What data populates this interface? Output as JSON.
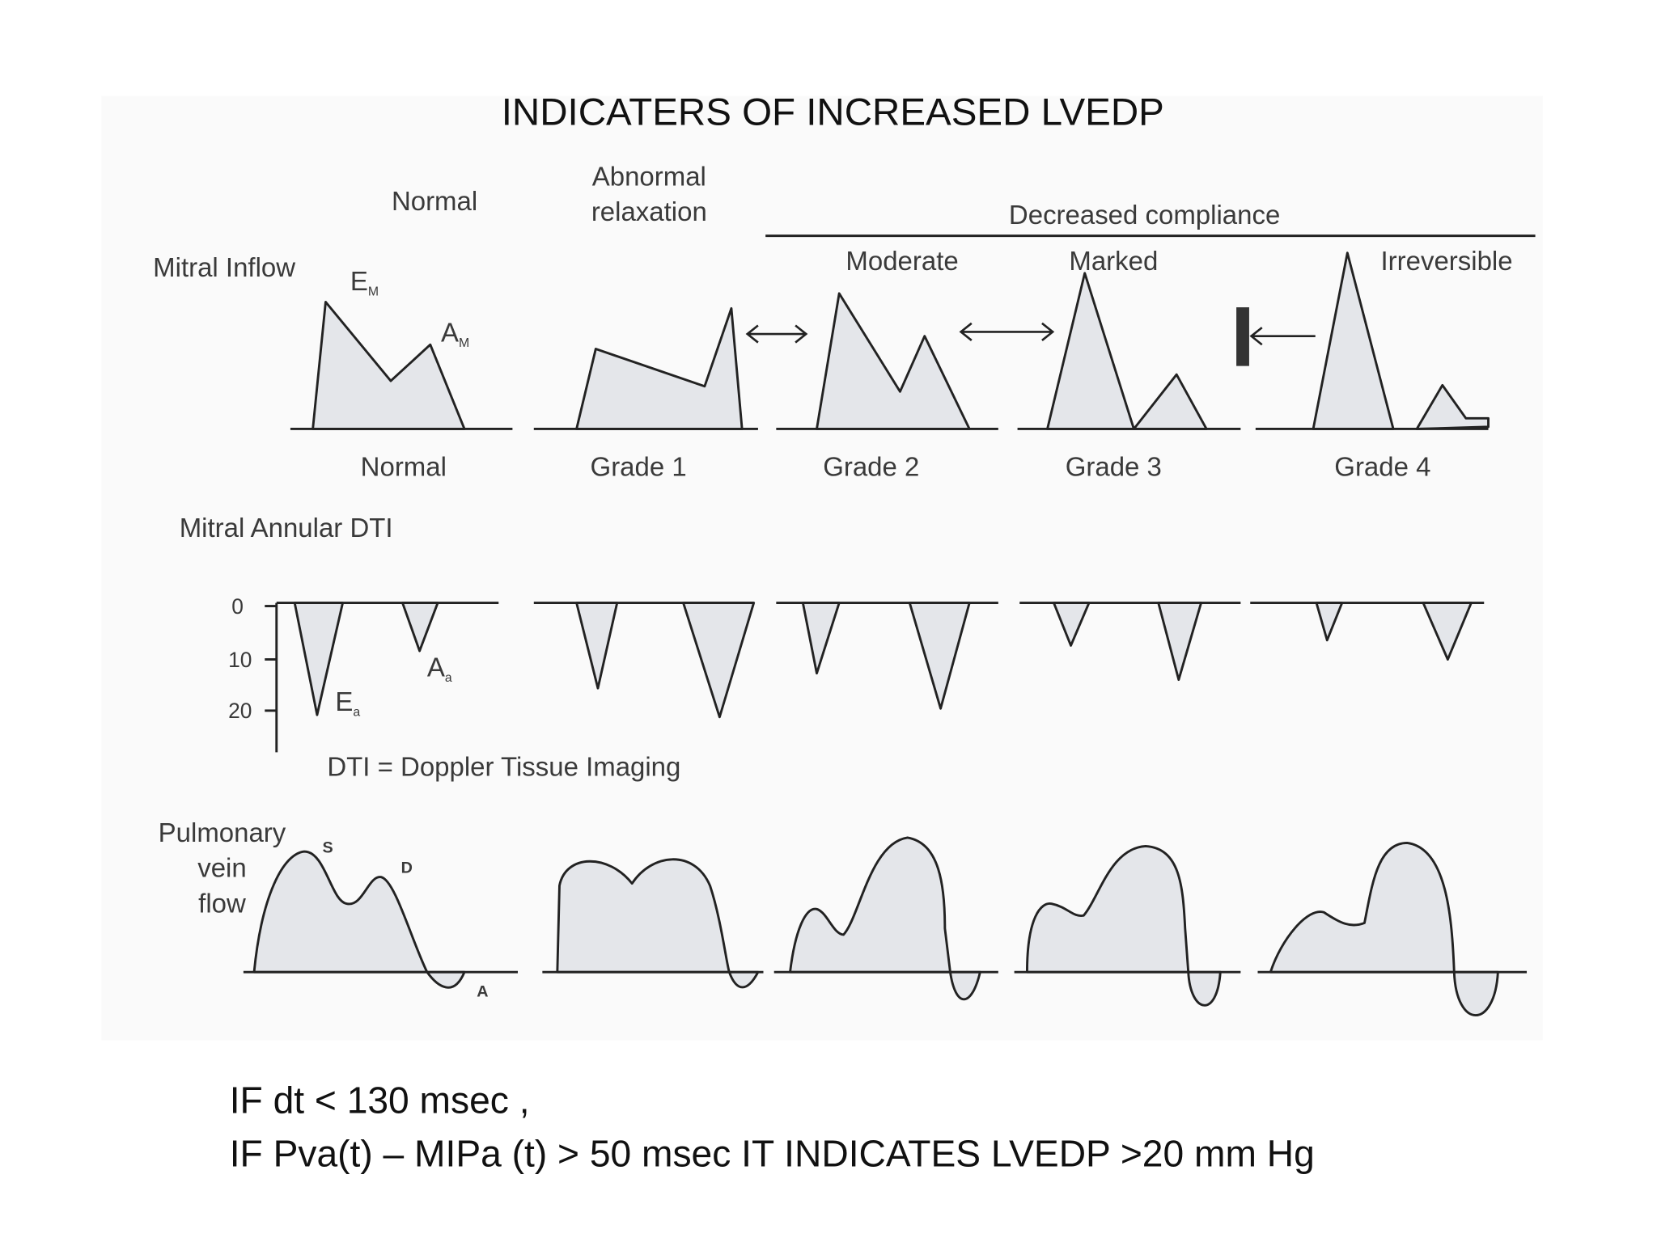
{
  "title": "INDICATERS OF INCREASED LVEDP",
  "headers": {
    "normal": "Normal",
    "abnormal": [
      "Abnormal",
      "relaxation"
    ],
    "decreased": "Decreased compliance",
    "sub": [
      "Moderate",
      "Marked",
      "Irreversible"
    ]
  },
  "mitral_inflow": {
    "label": "Mitral Inflow",
    "e_label": {
      "main": "E",
      "sub": "M"
    },
    "a_label": {
      "main": "A",
      "sub": "M"
    }
  },
  "grades": [
    "Normal",
    "Grade 1",
    "Grade 2",
    "Grade 3",
    "Grade 4"
  ],
  "dti": {
    "label": "Mitral Annular DTI",
    "ticks": [
      0,
      10,
      20
    ],
    "e_label": {
      "main": "E",
      "sub": "a"
    },
    "a_label": {
      "main": "A",
      "sub": "a"
    },
    "note": "DTI = Doppler Tissue Imaging"
  },
  "pulmonary": {
    "label": [
      "Pulmonary",
      "vein",
      "flow"
    ],
    "s": "S",
    "d": "D",
    "a": "A"
  },
  "footer": [
    "IF dt < 130 msec ,",
    "IF Pva(t) – MIPa (t) > 50 msec  IT INDICATES  LVEDP >20 mm Hg"
  ]
}
